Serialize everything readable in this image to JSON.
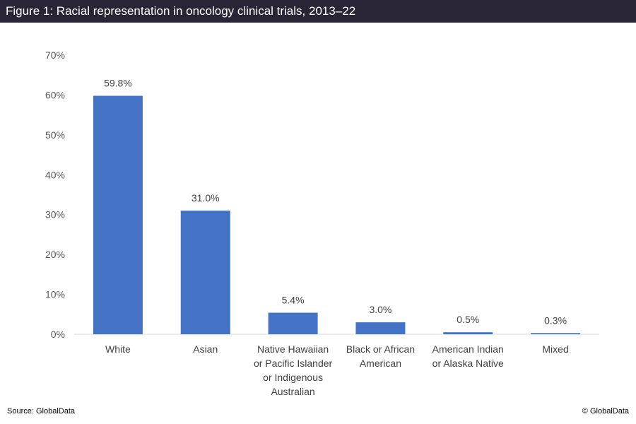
{
  "header": {
    "title": "Figure 1: Racial representation in oncology clinical trials, 2013–22"
  },
  "footer": {
    "source": "Source: GlobalData",
    "copyright": "© GlobalData"
  },
  "chart_data": {
    "type": "bar",
    "title": "Figure 1: Racial representation in oncology clinical trials, 2013–22",
    "categories": [
      [
        "White"
      ],
      [
        "Asian"
      ],
      [
        "Native Hawaiian",
        "or Pacific Islander",
        "or Indigenous",
        "Australian"
      ],
      [
        "Black or African",
        "American"
      ],
      [
        "American Indian",
        "or Alaska Native"
      ],
      [
        "Mixed"
      ]
    ],
    "values": [
      59.8,
      31.0,
      5.4,
      3.0,
      0.5,
      0.3
    ],
    "data_labels": [
      "59.8%",
      "31.0%",
      "5.4%",
      "3.0%",
      "0.5%",
      "0.3%"
    ],
    "yticks": [
      "0%",
      "10%",
      "20%",
      "30%",
      "40%",
      "50%",
      "60%",
      "70%"
    ],
    "ylim": [
      0,
      70
    ],
    "grid": false,
    "legend": "none",
    "bar_color": "#4472c4"
  }
}
